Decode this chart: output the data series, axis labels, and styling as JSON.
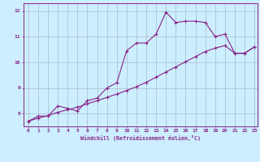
{
  "xlabel": "Windchill (Refroidissement éolien,°C)",
  "ylabel": "",
  "bg_color": "#cceeff",
  "grid_color": "#aabbcc",
  "line_color": "#882288",
  "xlim": [
    -0.5,
    23.3
  ],
  "ylim": [
    7.5,
    12.3
  ],
  "yticks": [
    8,
    9,
    10,
    11,
    12
  ],
  "xticks": [
    0,
    1,
    2,
    3,
    4,
    5,
    6,
    7,
    8,
    9,
    10,
    11,
    12,
    13,
    14,
    15,
    16,
    17,
    18,
    19,
    20,
    21,
    22,
    23
  ],
  "series1_x": [
    0,
    1,
    2,
    3,
    4,
    5,
    6,
    7,
    8,
    9,
    10,
    11,
    12,
    13,
    14,
    15,
    16,
    17,
    18,
    19,
    20,
    21,
    22,
    23
  ],
  "series1_y": [
    7.7,
    7.9,
    7.9,
    8.3,
    8.2,
    8.1,
    8.5,
    8.6,
    9.0,
    9.2,
    10.45,
    10.75,
    10.75,
    11.1,
    11.95,
    11.55,
    11.6,
    11.6,
    11.55,
    11.0,
    11.1,
    10.35,
    10.35,
    10.6
  ],
  "series2_x": [
    0,
    1,
    2,
    3,
    4,
    5,
    6,
    7,
    8,
    9,
    10,
    11,
    12,
    13,
    14,
    15,
    16,
    17,
    18,
    19,
    20,
    21,
    22,
    23
  ],
  "series2_y": [
    7.7,
    7.82,
    7.92,
    8.05,
    8.15,
    8.25,
    8.38,
    8.5,
    8.63,
    8.76,
    8.9,
    9.05,
    9.22,
    9.42,
    9.62,
    9.82,
    10.02,
    10.22,
    10.42,
    10.55,
    10.65,
    10.35,
    10.35,
    10.6
  ]
}
